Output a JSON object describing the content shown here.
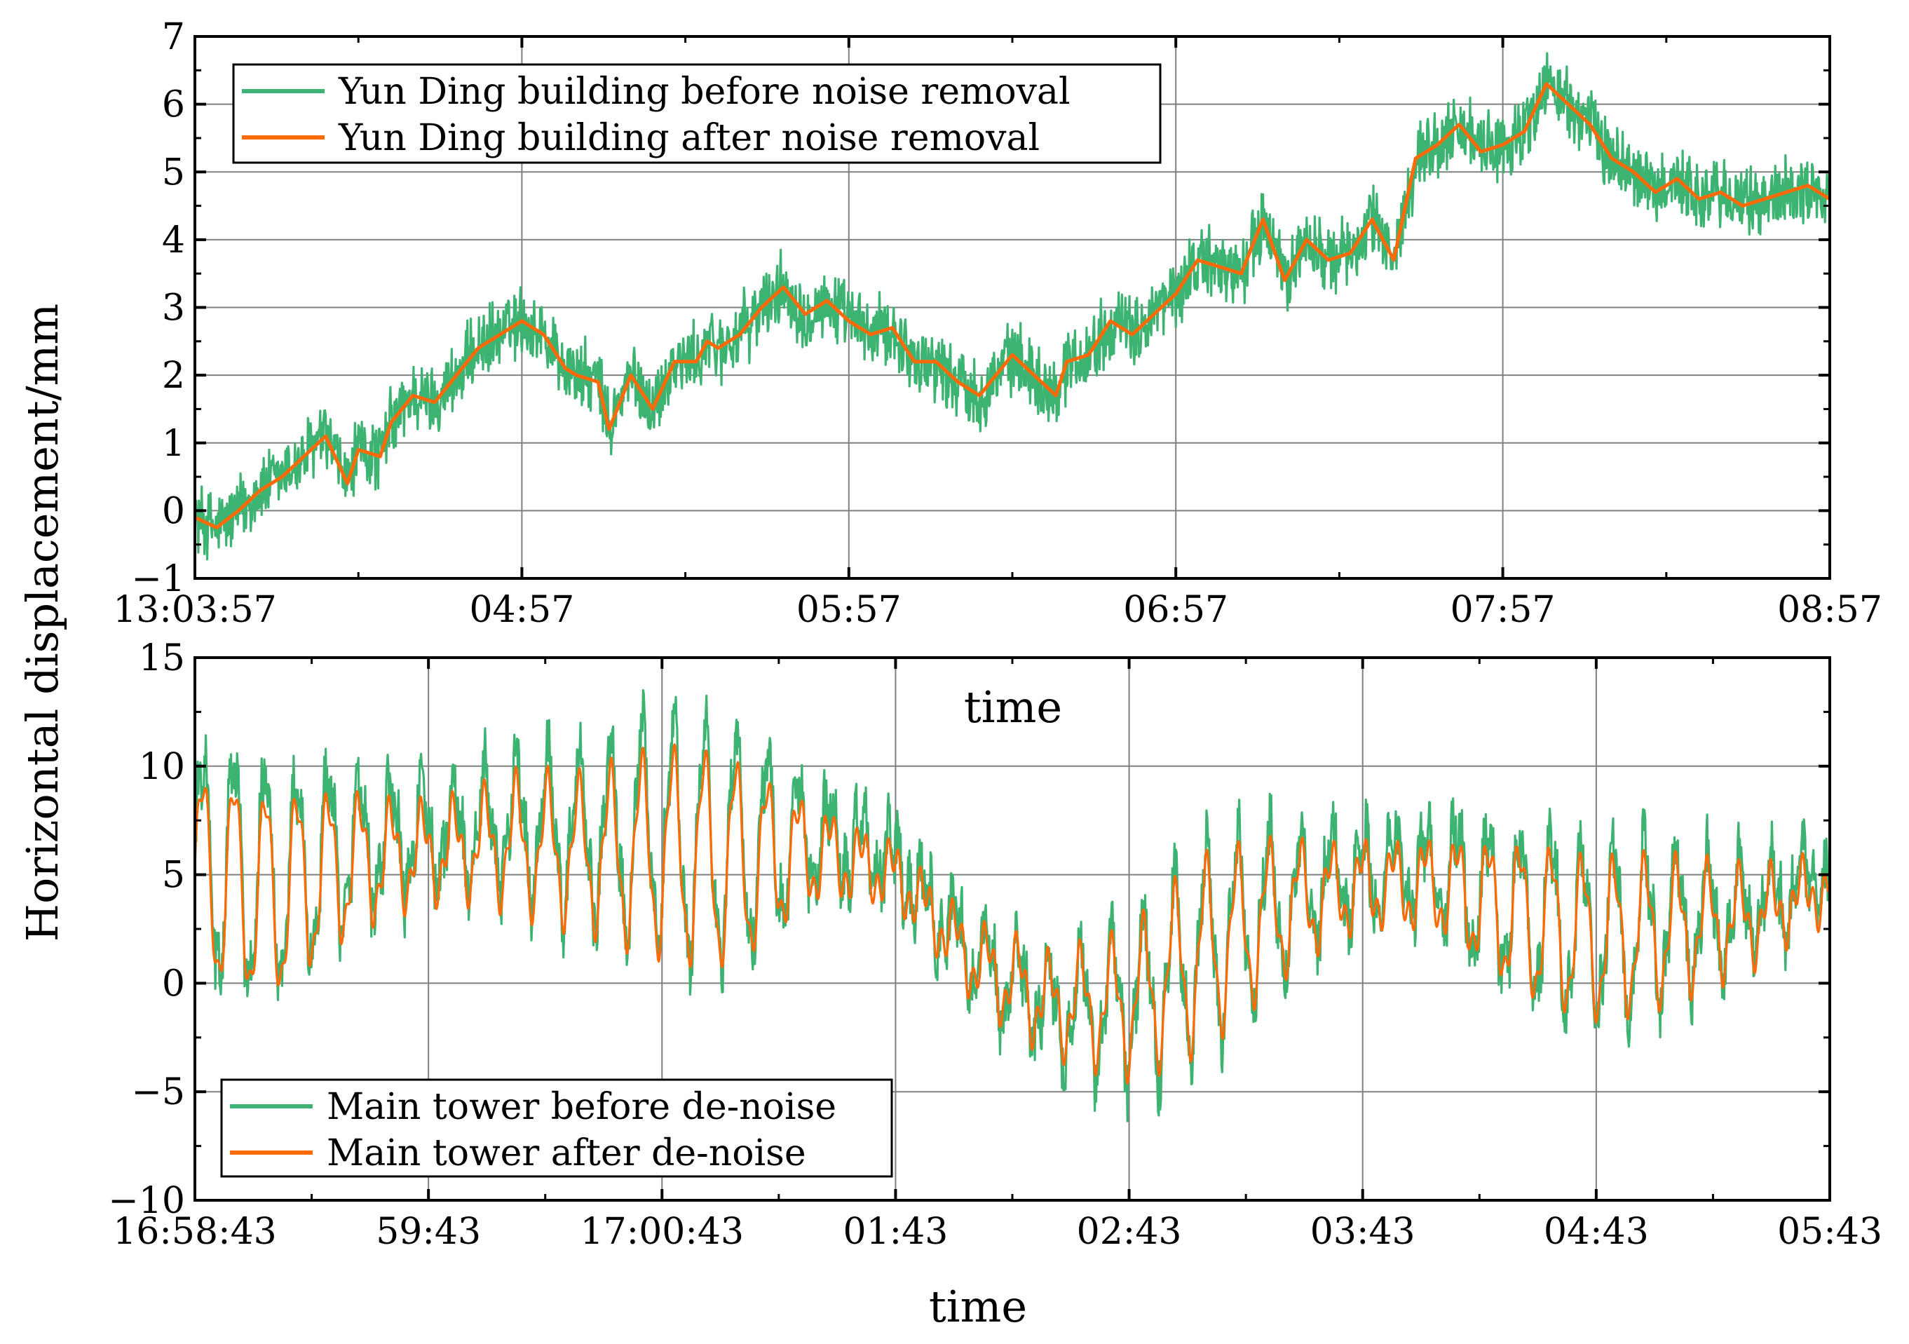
{
  "figure": {
    "ylabel": "Horizontal displacement/mm",
    "colors": {
      "before": "#3cb371",
      "after": "#ff6a07",
      "grid": "#808080",
      "axis": "#000000"
    }
  },
  "chart_data": [
    {
      "type": "line",
      "id": "top",
      "xlabel": "time",
      "ylabel": "Horizontal displacement/mm",
      "xlim": [
        0,
        300
      ],
      "ylim": [
        -1,
        7
      ],
      "x_ticks": [
        0,
        60,
        120,
        180,
        240,
        300
      ],
      "x_tick_labels": [
        "13:03:57",
        "04:57",
        "05:57",
        "06:57",
        "07:57",
        "08:57"
      ],
      "y_ticks": [
        -1,
        0,
        1,
        2,
        3,
        4,
        5,
        6,
        7
      ],
      "y_tick_labels": [
        "-1",
        "0",
        "1",
        "2",
        "3",
        "4",
        "5",
        "6",
        "7"
      ],
      "grid": true,
      "legend_position": "top-left",
      "noise_amplitude": 0.45,
      "series": [
        {
          "name": "Yun Ding building before noise removal",
          "color": "#3cb371",
          "kind": "raw"
        },
        {
          "name": "Yun Ding building after noise removal",
          "color": "#ff6a07",
          "kind": "smooth",
          "x": [
            0,
            4,
            8,
            12,
            16,
            20,
            24,
            28,
            30,
            34,
            36,
            40,
            44,
            48,
            52,
            56,
            60,
            64,
            68,
            70,
            74,
            76,
            80,
            84,
            88,
            92,
            94,
            96,
            100,
            104,
            108,
            112,
            116,
            120,
            124,
            128,
            132,
            136,
            140,
            144,
            148,
            150,
            154,
            158,
            160,
            164,
            168,
            172,
            176,
            180,
            184,
            188,
            192,
            196,
            200,
            204,
            208,
            212,
            216,
            220,
            224,
            228,
            232,
            236,
            240,
            244,
            248,
            252,
            256,
            260,
            264,
            268,
            272,
            276,
            280,
            284,
            288,
            292,
            296,
            300
          ],
          "values": [
            -0.1,
            -0.25,
            0.0,
            0.3,
            0.5,
            0.8,
            1.1,
            0.4,
            0.9,
            0.8,
            1.3,
            1.7,
            1.6,
            2.0,
            2.4,
            2.6,
            2.8,
            2.6,
            2.1,
            2.0,
            1.9,
            1.2,
            2.0,
            1.5,
            2.2,
            2.2,
            2.5,
            2.4,
            2.6,
            3.0,
            3.3,
            2.9,
            3.1,
            2.8,
            2.6,
            2.7,
            2.2,
            2.2,
            1.9,
            1.7,
            2.1,
            2.3,
            2.0,
            1.7,
            2.2,
            2.3,
            2.8,
            2.6,
            2.9,
            3.2,
            3.7,
            3.6,
            3.5,
            4.3,
            3.4,
            4.0,
            3.7,
            3.8,
            4.3,
            3.7,
            5.2,
            5.4,
            5.7,
            5.3,
            5.4,
            5.6,
            6.3,
            6.0,
            5.7,
            5.2,
            5.0,
            4.7,
            4.9,
            4.6,
            4.7,
            4.5,
            4.6,
            4.7,
            4.8,
            4.6
          ]
        }
      ]
    },
    {
      "type": "line",
      "id": "bottom",
      "xlabel": "time",
      "xlim": [
        0,
        420
      ],
      "ylim": [
        -10,
        15
      ],
      "x_ticks": [
        0,
        60,
        120,
        180,
        240,
        300,
        360,
        420
      ],
      "x_tick_labels": [
        "16:58:43",
        "59:43",
        "17:00:43",
        "01:43",
        "02:43",
        "03:43",
        "04:43",
        "05:43"
      ],
      "y_ticks": [
        -10,
        -5,
        0,
        5,
        10,
        15
      ],
      "y_tick_labels": [
        "-10",
        "-5",
        "0",
        "5",
        "10",
        "15"
      ],
      "grid": true,
      "legend_position": "bottom-left",
      "noise_amplitude": 1.4,
      "series": [
        {
          "name": "Main tower before de-noise",
          "color": "#3cb371",
          "kind": "raw"
        },
        {
          "name": "Main tower after de-noise",
          "color": "#ff6a07",
          "kind": "oscillating",
          "x": [
            0,
            20,
            40,
            60,
            80,
            100,
            120,
            140,
            160,
            180,
            190,
            200,
            210,
            220,
            240,
            260,
            280,
            300,
            320,
            340,
            360,
            380,
            400,
            420
          ],
          "baseline": [
            5.0,
            4.0,
            5.5,
            6.0,
            6.5,
            6.0,
            6.0,
            5.5,
            6.0,
            5.0,
            3.0,
            1.0,
            0.0,
            -1.0,
            -1.0,
            1.5,
            3.5,
            4.5,
            4.5,
            3.0,
            2.0,
            2.5,
            3.0,
            4.5
          ],
          "amplitude": [
            4.0,
            4.5,
            4.5,
            4.5,
            5.0,
            3.5,
            4.0,
            4.5,
            3.0,
            2.5,
            2.5,
            2.5,
            2.5,
            2.0,
            2.5,
            4.0,
            4.5,
            4.0,
            3.5,
            3.5,
            3.0,
            3.0,
            3.0,
            2.5
          ]
        }
      ]
    }
  ]
}
